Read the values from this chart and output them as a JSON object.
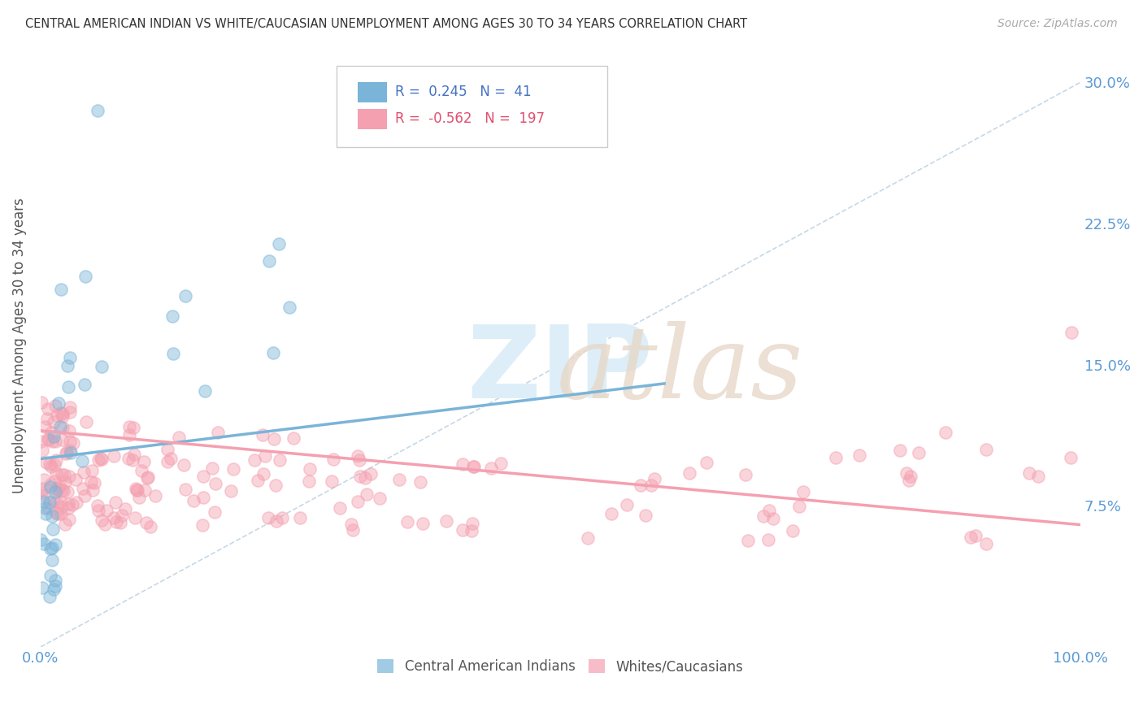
{
  "title": "CENTRAL AMERICAN INDIAN VS WHITE/CAUCASIAN UNEMPLOYMENT AMONG AGES 30 TO 34 YEARS CORRELATION CHART",
  "source": "Source: ZipAtlas.com",
  "ylabel": "Unemployment Among Ages 30 to 34 years",
  "xlim": [
    0,
    100
  ],
  "ylim": [
    0,
    32
  ],
  "xticks": [
    0,
    100
  ],
  "xticklabels": [
    "0.0%",
    "100.0%"
  ],
  "yticks": [
    7.5,
    15.0,
    22.5,
    30.0
  ],
  "yticklabels": [
    "7.5%",
    "15.0%",
    "22.5%",
    "30.0%"
  ],
  "blue_R": 0.245,
  "blue_N": 41,
  "pink_R": -0.562,
  "pink_N": 197,
  "blue_color": "#7ab4d8",
  "pink_color": "#f4a0b0",
  "tick_color": "#5b9bd5",
  "grid_color": "#e8e8e8",
  "background_color": "#ffffff",
  "watermark_color": "#ddeef8",
  "blue_trend_x0": 0.0,
  "blue_trend_y0": 10.0,
  "blue_trend_x1": 60.0,
  "blue_trend_y1": 14.0,
  "pink_trend_x0": 0.0,
  "pink_trend_y0": 11.5,
  "pink_trend_x1": 100.0,
  "pink_trend_y1": 6.5
}
